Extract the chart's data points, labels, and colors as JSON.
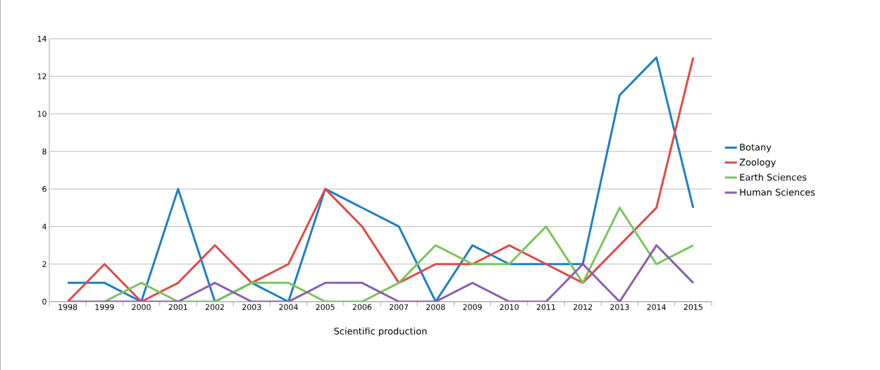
{
  "chart_data": {
    "type": "line",
    "xlabel": "Scientific production",
    "categories": [
      "1998",
      "1999",
      "2000",
      "2001",
      "2002",
      "2003",
      "2004",
      "2005",
      "2006",
      "2007",
      "2008",
      "2009",
      "2010",
      "2011",
      "2012",
      "2013",
      "2014",
      "2015"
    ],
    "series": [
      {
        "name": "Botany",
        "color": "#1f7fc4",
        "values": [
          1,
          1,
          0,
          6,
          0,
          1,
          0,
          6,
          5,
          4,
          0,
          3,
          2,
          2,
          2,
          11,
          13,
          5
        ]
      },
      {
        "name": "Zoology",
        "color": "#e04a45",
        "values": [
          0,
          2,
          0,
          1,
          3,
          1,
          2,
          6,
          4,
          1,
          2,
          2,
          3,
          2,
          1,
          3,
          5,
          13
        ]
      },
      {
        "name": "Earth Sciences",
        "color": "#7cc45a",
        "values": [
          null,
          0,
          1,
          0,
          0,
          1,
          1,
          0,
          0,
          1,
          3,
          2,
          2,
          4,
          1,
          5,
          2,
          3
        ]
      },
      {
        "name": "Human Sciences",
        "color": "#8a5fb0",
        "values": [
          0,
          0,
          0,
          0,
          1,
          0,
          0,
          1,
          1,
          0,
          0,
          1,
          0,
          0,
          2,
          0,
          3,
          1
        ]
      }
    ],
    "ylim": [
      0,
      14
    ],
    "yticks": [
      0,
      2,
      4,
      6,
      8,
      10,
      12,
      14
    ],
    "grid": "y",
    "legend": "right",
    "marker": "none",
    "line_style": "solid"
  }
}
